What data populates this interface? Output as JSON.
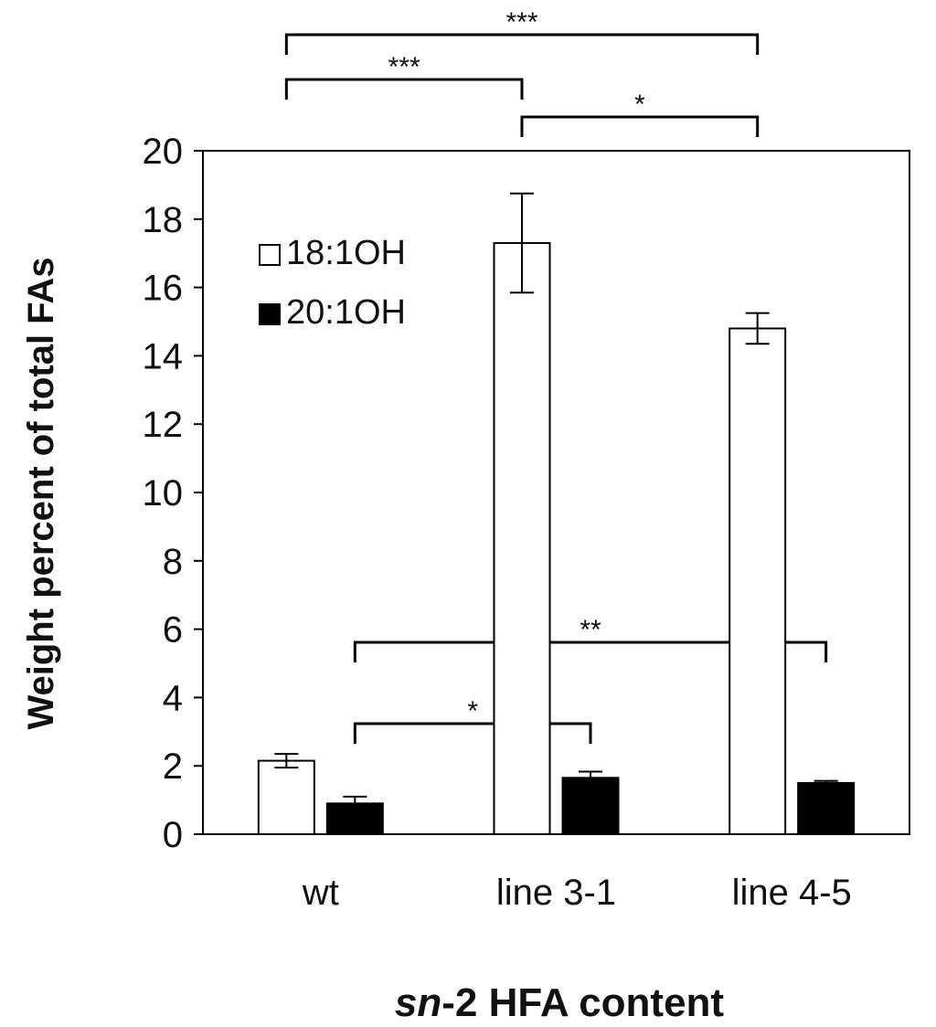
{
  "chart_data": {
    "type": "bar",
    "categories": [
      "wt",
      "line 3-1",
      "line 4-5"
    ],
    "series": [
      {
        "name": "18:1OH",
        "values": [
          2.15,
          17.3,
          14.8
        ],
        "errors": [
          0.2,
          1.45,
          0.45
        ],
        "color": "#ffffff"
      },
      {
        "name": "20:1OH",
        "values": [
          0.9,
          1.65,
          1.5
        ],
        "errors": [
          0.2,
          0.18,
          0.06
        ],
        "color": "#000000"
      }
    ],
    "ylim": [
      0,
      20
    ],
    "yticks": [
      0,
      2,
      4,
      6,
      8,
      10,
      12,
      14,
      16,
      18,
      20
    ],
    "ylabel": "Weight percent of total FAs",
    "xlabel": {
      "italic": "sn",
      "rest": "-2 HFA content"
    },
    "legend": {
      "placement": "top-left"
    },
    "significance": [
      {
        "series": 0,
        "from": 0,
        "to": 2,
        "label": "***"
      },
      {
        "series": 0,
        "from": 0,
        "to": 1,
        "label": "***"
      },
      {
        "series": 0,
        "from": 1,
        "to": 2,
        "label": "*"
      },
      {
        "series": 1,
        "from": 0,
        "to": 2,
        "label": "**"
      },
      {
        "series": 1,
        "from": 0,
        "to": 1,
        "label": "*"
      }
    ]
  }
}
